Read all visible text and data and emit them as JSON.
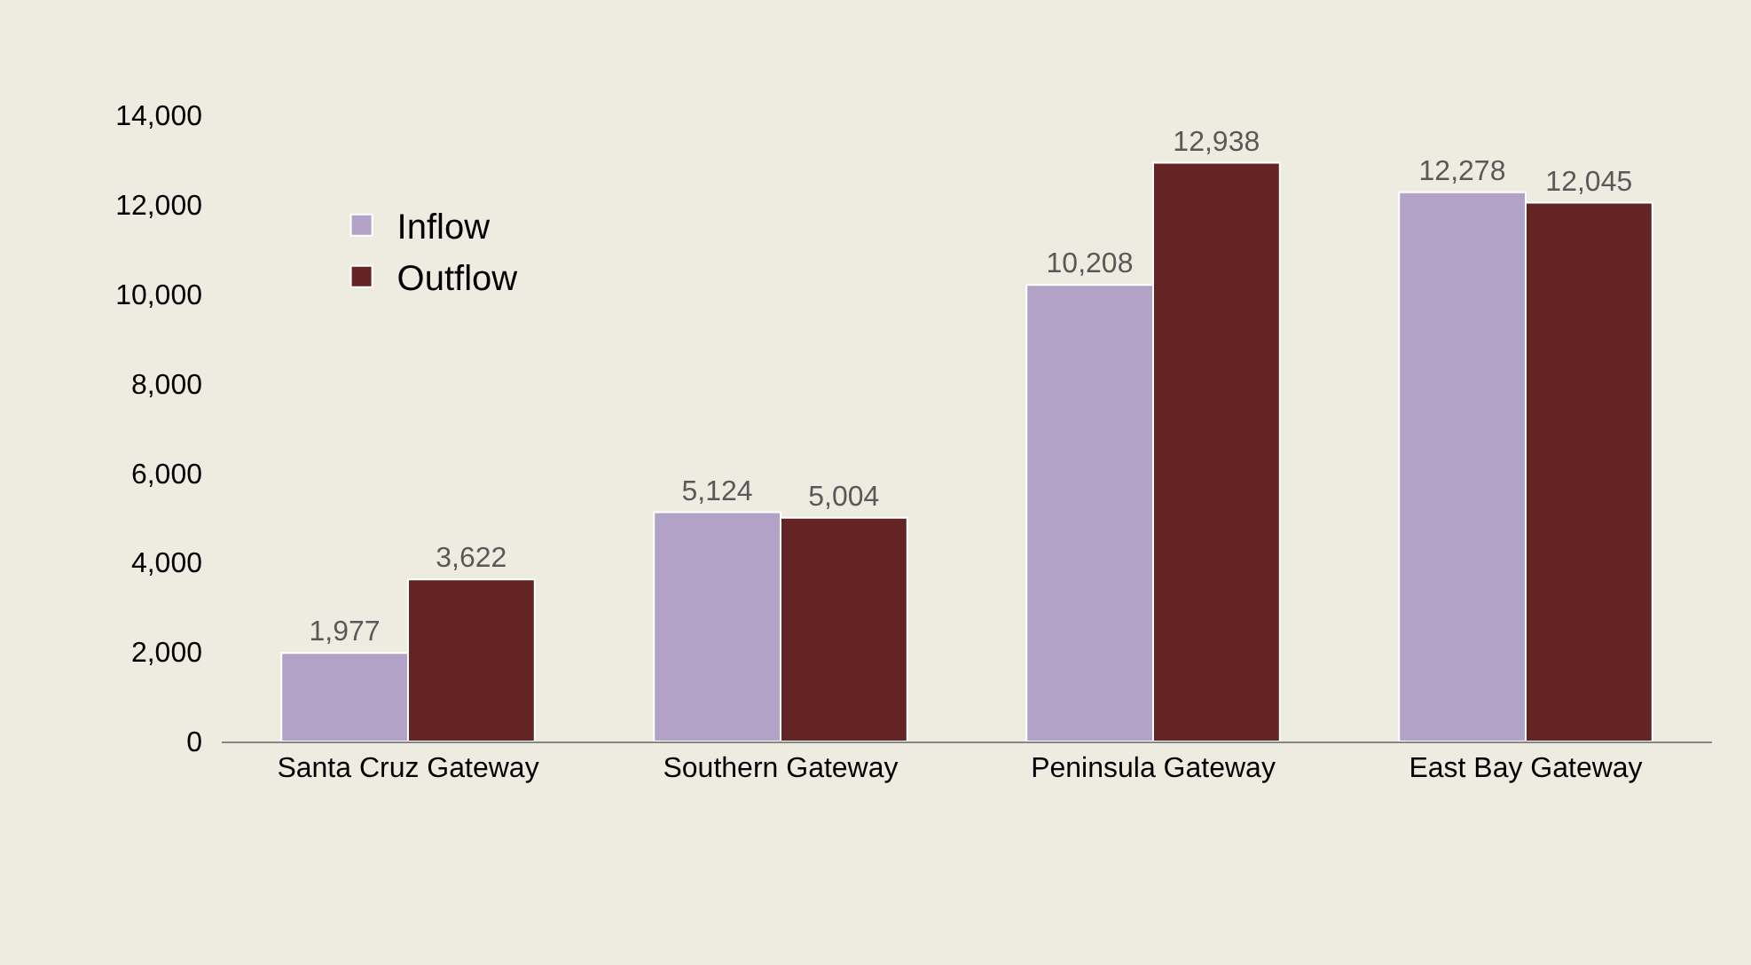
{
  "chart_data": {
    "type": "bar",
    "categories": [
      "Santa Cruz Gateway",
      "Southern Gateway",
      "Peninsula Gateway",
      "East Bay Gateway"
    ],
    "series": [
      {
        "name": "Inflow",
        "color": "#b3a2c7",
        "values": [
          1977,
          5124,
          10208,
          12278
        ],
        "value_labels": [
          "1,977",
          "5,124",
          "10,208",
          "12,278"
        ]
      },
      {
        "name": "Outflow",
        "color": "#632423",
        "values": [
          3622,
          5004,
          12938,
          12045
        ],
        "value_labels": [
          "3,622",
          "5,004",
          "12,938",
          "12,045"
        ]
      }
    ],
    "ylim": [
      0,
      14000
    ],
    "yticks": [
      0,
      {
        "value": 2000,
        "label": "2,000"
      },
      {
        "value": 4000,
        "label": "4,000"
      },
      {
        "value": 6000,
        "label": "6,000"
      },
      {
        "value": 8000,
        "label": "8,000"
      },
      {
        "value": 10000,
        "label": "10,000"
      },
      {
        "value": 12000,
        "label": "12,000"
      },
      {
        "value": 14000,
        "label": "14,000"
      }
    ],
    "grid": false,
    "legend": "top left"
  }
}
